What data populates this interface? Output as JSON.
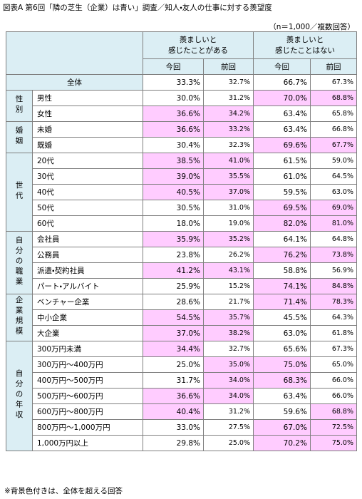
{
  "title": "図表A 第6回「隣の芝生（企業）は青い」調査／知人・友人の仕事に対する羨望度",
  "note": "（n＝1,000／複数回答）",
  "header": {
    "groups": [
      "羨ましいと\n感じたことがある",
      "羨ましいと\n感じたことはない"
    ],
    "sub": [
      "今回",
      "前回",
      "今回",
      "前回"
    ]
  },
  "total": {
    "label": "全体",
    "values": [
      "33.3%",
      "32.7%",
      "66.7%",
      "67.3%"
    ]
  },
  "sections": [
    {
      "label": "性別",
      "rows": [
        {
          "label": "男性",
          "values": [
            "30.0%",
            "31.2%",
            "70.0%",
            "68.8%"
          ]
        },
        {
          "label": "女性",
          "values": [
            "36.6%",
            "34.2%",
            "63.4%",
            "65.8%"
          ]
        }
      ]
    },
    {
      "label": "婚姻",
      "rows": [
        {
          "label": "未婚",
          "values": [
            "36.6%",
            "33.2%",
            "63.4%",
            "66.8%"
          ]
        },
        {
          "label": "既婚",
          "values": [
            "30.4%",
            "32.3%",
            "69.6%",
            "67.7%"
          ]
        }
      ]
    },
    {
      "label": "世代",
      "rows": [
        {
          "label": "20代",
          "values": [
            "38.5%",
            "41.0%",
            "61.5%",
            "59.0%"
          ]
        },
        {
          "label": "30代",
          "values": [
            "39.0%",
            "35.5%",
            "61.0%",
            "64.5%"
          ]
        },
        {
          "label": "40代",
          "values": [
            "40.5%",
            "37.0%",
            "59.5%",
            "63.0%"
          ]
        },
        {
          "label": "50代",
          "values": [
            "30.5%",
            "31.0%",
            "69.5%",
            "69.0%"
          ]
        },
        {
          "label": "60代",
          "values": [
            "18.0%",
            "19.0%",
            "82.0%",
            "81.0%"
          ]
        }
      ]
    },
    {
      "label": "自分の職業",
      "rows": [
        {
          "label": "会社員",
          "values": [
            "35.9%",
            "35.2%",
            "64.1%",
            "64.8%"
          ]
        },
        {
          "label": "公務員",
          "values": [
            "23.8%",
            "26.2%",
            "76.2%",
            "73.8%"
          ]
        },
        {
          "label": "派遣・契約社員",
          "values": [
            "41.2%",
            "43.1%",
            "58.8%",
            "56.9%"
          ]
        },
        {
          "label": "パート・アルバイト",
          "values": [
            "25.9%",
            "15.2%",
            "74.1%",
            "84.8%"
          ]
        }
      ]
    },
    {
      "label": "企業規模",
      "rows": [
        {
          "label": "ベンチャー企業",
          "values": [
            "28.6%",
            "21.7%",
            "71.4%",
            "78.3%"
          ]
        },
        {
          "label": "中小企業",
          "values": [
            "54.5%",
            "35.7%",
            "45.5%",
            "64.3%"
          ]
        },
        {
          "label": "大企業",
          "values": [
            "37.0%",
            "38.2%",
            "63.0%",
            "61.8%"
          ]
        }
      ]
    },
    {
      "label": "自分の年収",
      "rows": [
        {
          "label": "300万円未満",
          "values": [
            "34.4%",
            "32.7%",
            "65.6%",
            "67.3%"
          ]
        },
        {
          "label": "300万円～400万円",
          "values": [
            "25.0%",
            "35.0%",
            "75.0%",
            "65.0%"
          ]
        },
        {
          "label": "400万円～500万円",
          "values": [
            "31.7%",
            "34.0%",
            "68.3%",
            "66.0%"
          ]
        },
        {
          "label": "500万円～600万円",
          "values": [
            "36.6%",
            "34.0%",
            "63.4%",
            "66.0%"
          ]
        },
        {
          "label": "600万円～800万円",
          "values": [
            "40.4%",
            "31.2%",
            "59.6%",
            "68.8%"
          ]
        },
        {
          "label": "800万円～1,000万円",
          "values": [
            "33.0%",
            "27.5%",
            "67.0%",
            "72.5%"
          ]
        },
        {
          "label": "1,000万円以上",
          "values": [
            "29.8%",
            "25.0%",
            "70.2%",
            "75.0%"
          ]
        }
      ]
    }
  ],
  "footnote": "※背景色付きは、全体を超える回答"
}
